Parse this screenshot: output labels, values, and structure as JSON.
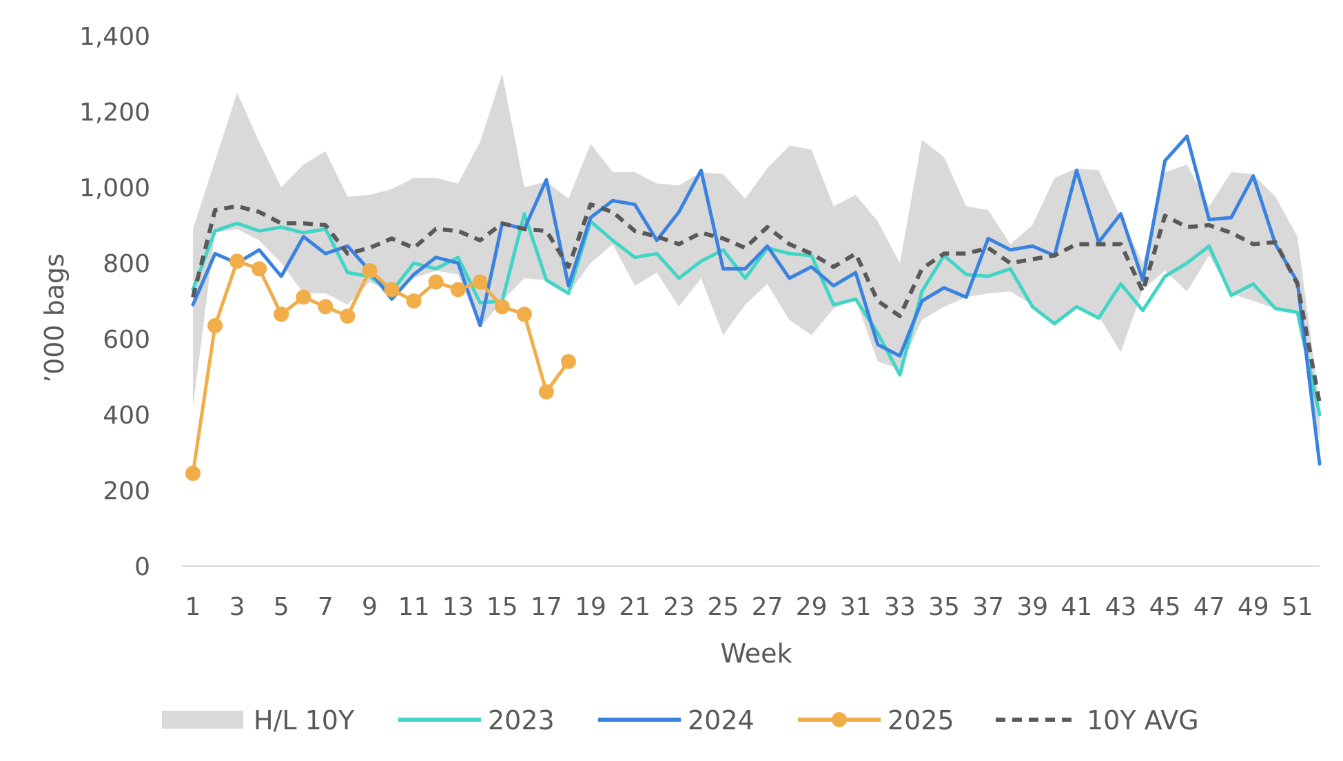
{
  "chart_data": {
    "type": "line",
    "title": "",
    "xlabel": "Week",
    "ylabel": "’000 bags",
    "ylim": [
      0,
      1400
    ],
    "yticks": [
      0,
      200,
      400,
      600,
      800,
      1000,
      1200,
      1400
    ],
    "ytick_labels": [
      "0",
      "200",
      "400",
      "600",
      "800",
      "1,000",
      "1,200",
      "1,400"
    ],
    "xlim": [
      1,
      52
    ],
    "xticks": [
      1,
      3,
      5,
      7,
      9,
      11,
      13,
      15,
      17,
      19,
      21,
      23,
      25,
      27,
      29,
      31,
      33,
      35,
      37,
      39,
      41,
      43,
      45,
      47,
      49,
      51
    ],
    "xtick_labels": [
      "1",
      "3",
      "5",
      "7",
      "9",
      "11",
      "13",
      "15",
      "17",
      "19",
      "21",
      "23",
      "25",
      "27",
      "29",
      "31",
      "33",
      "35",
      "37",
      "39",
      "41",
      "43",
      "45",
      "47",
      "49",
      "51"
    ],
    "grid": false,
    "legend_position": "bottom",
    "band": {
      "name": "H/L 10Y",
      "color": "#d9d9d9",
      "x": [
        1,
        2,
        3,
        4,
        5,
        6,
        7,
        8,
        9,
        10,
        11,
        12,
        13,
        14,
        15,
        16,
        17,
        18,
        19,
        20,
        21,
        22,
        23,
        24,
        25,
        26,
        27,
        28,
        29,
        30,
        31,
        32,
        33,
        34,
        35,
        36,
        37,
        38,
        39,
        40,
        41,
        42,
        43,
        44,
        45,
        46,
        47,
        48,
        49,
        50,
        51,
        52
      ],
      "high": [
        890,
        1070,
        1250,
        1120,
        1000,
        1060,
        1095,
        975,
        980,
        995,
        1025,
        1025,
        1010,
        1120,
        1300,
        1000,
        1015,
        970,
        1115,
        1040,
        1040,
        1010,
        1005,
        1040,
        1035,
        970,
        1050,
        1110,
        1100,
        950,
        980,
        910,
        800,
        1125,
        1080,
        950,
        940,
        850,
        900,
        1025,
        1050,
        1045,
        920,
        800,
        1040,
        1060,
        950,
        1040,
        1035,
        975,
        870,
        430
      ],
      "low": [
        420,
        880,
        890,
        860,
        800,
        720,
        720,
        690,
        750,
        720,
        760,
        780,
        770,
        630,
        700,
        760,
        755,
        720,
        800,
        850,
        740,
        775,
        685,
        760,
        610,
        690,
        745,
        650,
        610,
        680,
        705,
        540,
        520,
        650,
        685,
        710,
        720,
        725,
        690,
        640,
        680,
        660,
        565,
        730,
        780,
        725,
        820,
        720,
        700,
        680,
        670,
        330
      ]
    },
    "series": [
      {
        "name": "2023",
        "color": "#40d5c6",
        "dash": false,
        "markers": false,
        "x": [
          1,
          2,
          3,
          4,
          5,
          6,
          7,
          8,
          9,
          10,
          11,
          12,
          13,
          14,
          15,
          16,
          17,
          18,
          19,
          20,
          21,
          22,
          23,
          24,
          25,
          26,
          27,
          28,
          29,
          30,
          31,
          32,
          33,
          34,
          35,
          36,
          37,
          38,
          39,
          40,
          41,
          42,
          43,
          44,
          45,
          46,
          47,
          48,
          49,
          50,
          51,
          52
        ],
        "values": [
          730,
          885,
          905,
          885,
          895,
          880,
          890,
          775,
          765,
          725,
          800,
          785,
          815,
          695,
          700,
          930,
          755,
          720,
          910,
          860,
          815,
          825,
          760,
          805,
          835,
          760,
          840,
          825,
          820,
          690,
          705,
          615,
          505,
          725,
          820,
          770,
          765,
          785,
          685,
          640,
          685,
          655,
          745,
          675,
          765,
          800,
          845,
          715,
          745,
          680,
          670,
          400
        ]
      },
      {
        "name": "2024",
        "color": "#3a82e0",
        "dash": false,
        "markers": false,
        "x": [
          1,
          2,
          3,
          4,
          5,
          6,
          7,
          8,
          9,
          10,
          11,
          12,
          13,
          14,
          15,
          16,
          17,
          18,
          19,
          20,
          21,
          22,
          23,
          24,
          25,
          26,
          27,
          28,
          29,
          30,
          31,
          32,
          33,
          34,
          35,
          36,
          37,
          38,
          39,
          40,
          41,
          42,
          43,
          44,
          45,
          46,
          47,
          48,
          49,
          50,
          51,
          52
        ],
        "values": [
          690,
          825,
          800,
          835,
          765,
          870,
          825,
          845,
          780,
          705,
          770,
          815,
          800,
          635,
          905,
          890,
          1020,
          740,
          920,
          965,
          955,
          860,
          935,
          1045,
          785,
          785,
          845,
          760,
          790,
          740,
          775,
          585,
          555,
          700,
          735,
          710,
          865,
          835,
          845,
          820,
          1045,
          855,
          930,
          755,
          1070,
          1135,
          915,
          920,
          1030,
          850,
          750,
          270
        ]
      },
      {
        "name": "2025",
        "color": "#f0ad4a",
        "dash": false,
        "markers": true,
        "x": [
          1,
          2,
          3,
          4,
          5,
          6,
          7,
          8,
          9,
          10,
          11,
          12,
          13,
          14,
          15,
          16,
          17,
          18
        ],
        "values": [
          245,
          635,
          805,
          785,
          665,
          710,
          685,
          660,
          780,
          730,
          700,
          750,
          730,
          750,
          685,
          665,
          460,
          540
        ]
      },
      {
        "name": "10Y AVG",
        "color": "#595959",
        "dash": true,
        "markers": false,
        "x": [
          1,
          2,
          3,
          4,
          5,
          6,
          7,
          8,
          9,
          10,
          11,
          12,
          13,
          14,
          15,
          16,
          17,
          18,
          19,
          20,
          21,
          22,
          23,
          24,
          25,
          26,
          27,
          28,
          29,
          30,
          31,
          32,
          33,
          34,
          35,
          36,
          37,
          38,
          39,
          40,
          41,
          42,
          43,
          44,
          45,
          46,
          47,
          48,
          49,
          50,
          51,
          52
        ],
        "values": [
          710,
          940,
          950,
          935,
          905,
          905,
          900,
          825,
          840,
          865,
          840,
          890,
          885,
          860,
          905,
          890,
          885,
          790,
          955,
          935,
          885,
          870,
          850,
          880,
          865,
          840,
          895,
          850,
          825,
          790,
          825,
          700,
          660,
          785,
          825,
          825,
          840,
          800,
          810,
          820,
          850,
          850,
          850,
          725,
          925,
          895,
          900,
          880,
          850,
          855,
          745,
          430
        ]
      }
    ],
    "legend": [
      {
        "label": "H/L 10Y",
        "kind": "band"
      },
      {
        "label": "2023",
        "kind": "line"
      },
      {
        "label": "2024",
        "kind": "line"
      },
      {
        "label": "2025",
        "kind": "line-marker"
      },
      {
        "label": "10Y AVG",
        "kind": "dash"
      }
    ]
  }
}
